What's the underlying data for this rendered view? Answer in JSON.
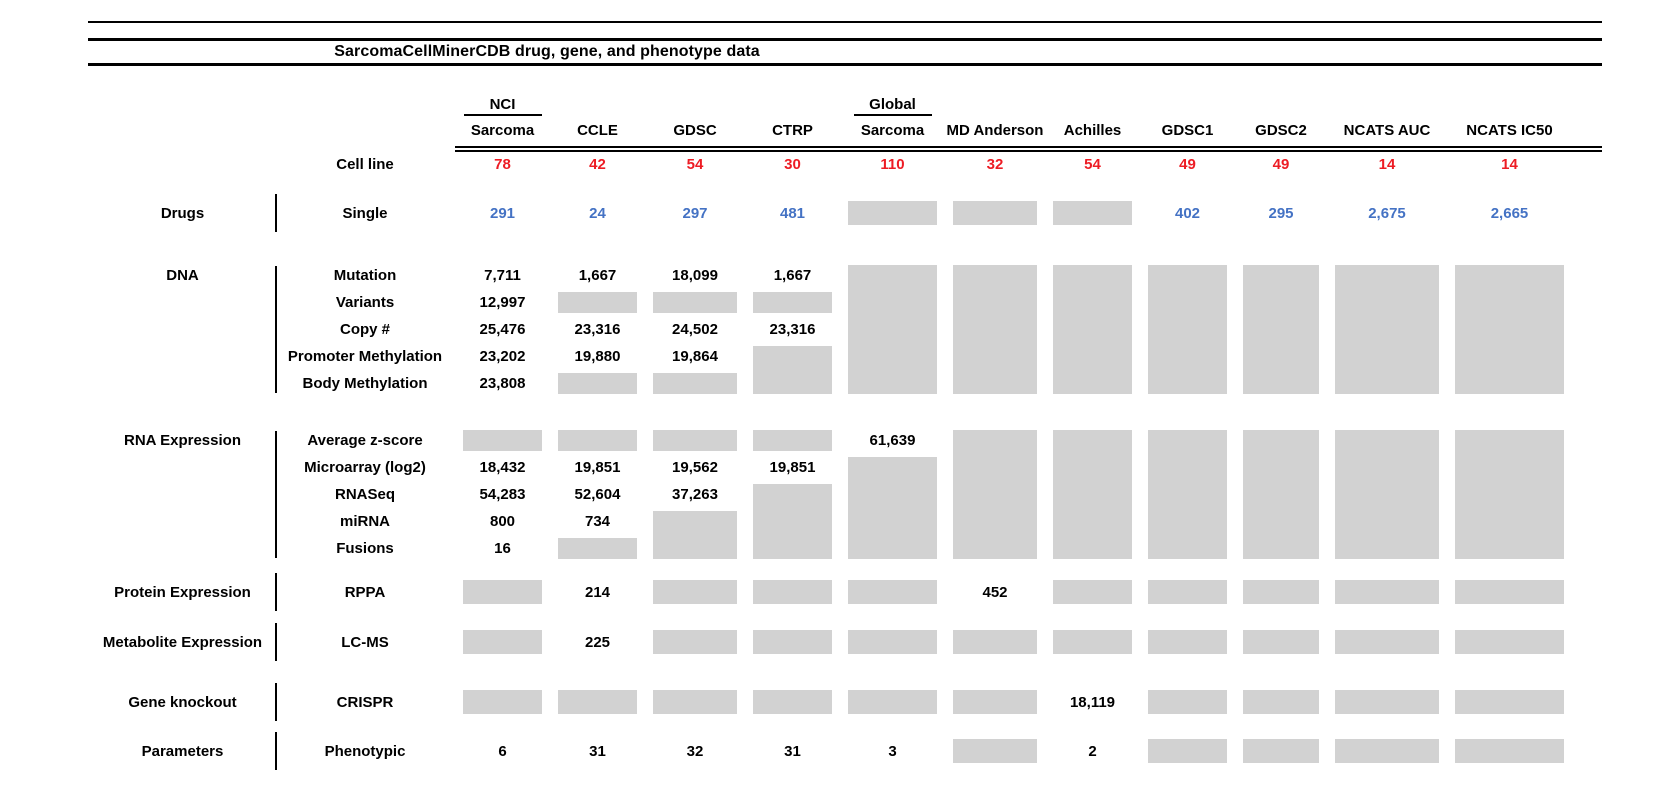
{
  "title": "SarcomaCellMinerCDB drug, gene, and phenotype data",
  "colors": {
    "cell_line_count_red": "#ed1c24",
    "drug_count_blue": "#4472c4",
    "missing_data_gray": "#d2d2d2",
    "rule_black": "#000000"
  },
  "legend_note_visible": false,
  "chart_data": {
    "type": "table",
    "title": "SarcomaCellMinerCDB drug, gene, and phenotype data",
    "columns": [
      {
        "top": "NCI",
        "name": "Sarcoma"
      },
      {
        "name": "CCLE"
      },
      {
        "name": "GDSC"
      },
      {
        "name": "CTRP"
      },
      {
        "top": "Global",
        "name": "Sarcoma"
      },
      {
        "name": "MD Anderson"
      },
      {
        "name": "Achilles"
      },
      {
        "name": "GDSC1"
      },
      {
        "name": "GDSC2"
      },
      {
        "name": "NCATS AUC"
      },
      {
        "name": "NCATS IC50"
      }
    ],
    "cell_line_row": {
      "label": "Cell line",
      "color": "red",
      "values": [
        "78",
        "42",
        "54",
        "30",
        "110",
        "32",
        "54",
        "49",
        "49",
        "14",
        "14"
      ]
    },
    "missing_data_marker": "gray box (null values)",
    "sections": [
      {
        "category": "Drugs",
        "value_color": "blue",
        "rows": [
          {
            "label": "Single",
            "values": [
              "291",
              "24",
              "297",
              "481",
              null,
              null,
              null,
              "402",
              "295",
              "2,675",
              "2,665"
            ]
          }
        ]
      },
      {
        "category": "DNA",
        "rows": [
          {
            "label": "Mutation",
            "values": [
              "7,711",
              "1,667",
              "18,099",
              "1,667",
              null,
              null,
              null,
              null,
              null,
              null,
              null
            ]
          },
          {
            "label": "Variants",
            "values": [
              "12,997",
              null,
              null,
              null,
              null,
              null,
              null,
              null,
              null,
              null,
              null
            ]
          },
          {
            "label": "Copy #",
            "values": [
              "25,476",
              "23,316",
              "24,502",
              "23,316",
              null,
              null,
              null,
              null,
              null,
              null,
              null
            ]
          },
          {
            "label": "Promoter Methylation",
            "values": [
              "23,202",
              "19,880",
              "19,864",
              null,
              null,
              null,
              null,
              null,
              null,
              null,
              null
            ]
          },
          {
            "label": "Body Methylation",
            "values": [
              "23,808",
              null,
              null,
              null,
              null,
              null,
              null,
              null,
              null,
              null,
              null
            ]
          }
        ]
      },
      {
        "category": "RNA Expression",
        "rows": [
          {
            "label": "Average z-score",
            "values": [
              null,
              null,
              null,
              null,
              "61,639",
              null,
              null,
              null,
              null,
              null,
              null
            ]
          },
          {
            "label": "Microarray (log2)",
            "values": [
              "18,432",
              "19,851",
              "19,562",
              "19,851",
              null,
              null,
              null,
              null,
              null,
              null,
              null
            ]
          },
          {
            "label": "RNASeq",
            "values": [
              "54,283",
              "52,604",
              "37,263",
              null,
              null,
              null,
              null,
              null,
              null,
              null,
              null
            ]
          },
          {
            "label": "miRNA",
            "values": [
              "800",
              "734",
              null,
              null,
              null,
              null,
              null,
              null,
              null,
              null,
              null
            ]
          },
          {
            "label": "Fusions",
            "values": [
              "16",
              null,
              null,
              null,
              null,
              null,
              null,
              null,
              null,
              null,
              null
            ]
          }
        ]
      },
      {
        "category": "Protein Expression",
        "rows": [
          {
            "label": "RPPA",
            "values": [
              null,
              "214",
              null,
              null,
              null,
              "452",
              null,
              null,
              null,
              null,
              null
            ]
          }
        ]
      },
      {
        "category": "Metabolite Expression",
        "rows": [
          {
            "label": "LC-MS",
            "values": [
              null,
              "225",
              null,
              null,
              null,
              null,
              null,
              null,
              null,
              null,
              null
            ]
          }
        ]
      },
      {
        "category": "Gene knockout",
        "rows": [
          {
            "label": "CRISPR",
            "values": [
              null,
              null,
              null,
              null,
              null,
              null,
              "18,119",
              null,
              null,
              null,
              null
            ]
          }
        ]
      },
      {
        "category": "Parameters",
        "rows": [
          {
            "label": "Phenotypic",
            "values": [
              "6",
              "31",
              "32",
              "31",
              "3",
              null,
              "2",
              null,
              null,
              null,
              null
            ]
          }
        ]
      }
    ]
  }
}
